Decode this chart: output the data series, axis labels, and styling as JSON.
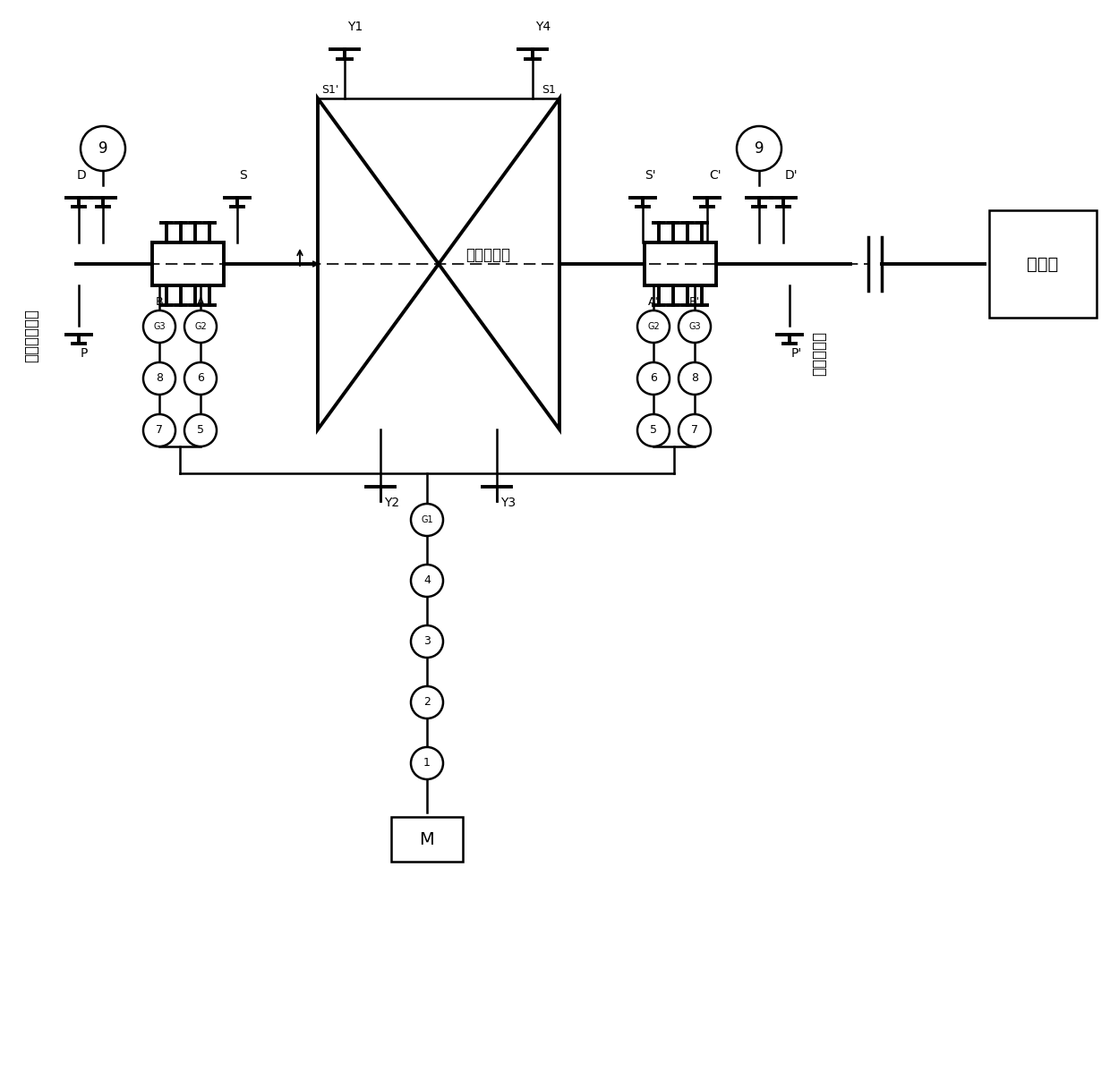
{
  "bg_color": "#ffffff",
  "line_color": "#000000",
  "left_seal_label": "非驱动側密封",
  "right_seal_label": "驱动側密封",
  "compressor_label": "离心压缩机",
  "driver_label": "驱动机",
  "M_label": "M"
}
